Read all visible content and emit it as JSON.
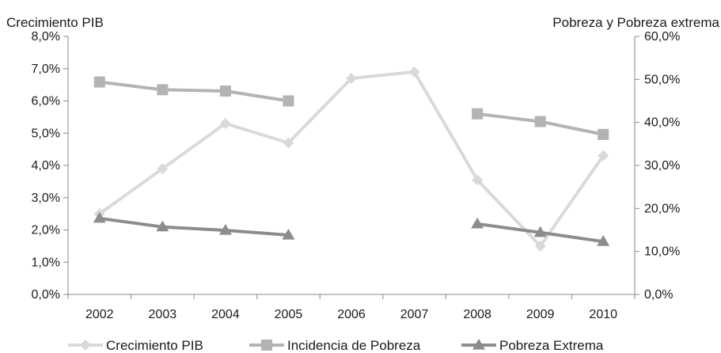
{
  "chart_data": {
    "type": "line",
    "title": "",
    "ylabel_left": "Crecimiento PIB",
    "ylabel_right": "Pobreza y Pobreza extrema",
    "categories": [
      "2002",
      "2003",
      "2004",
      "2005",
      "2006",
      "2007",
      "2008",
      "2009",
      "2010"
    ],
    "y_left": {
      "min": 0,
      "max": 8,
      "ticks": [
        0,
        1,
        2,
        3,
        4,
        5,
        6,
        7,
        8
      ],
      "tick_labels": [
        "0,0%",
        "1,0%",
        "2,0%",
        "3,0%",
        "4,0%",
        "5,0%",
        "6,0%",
        "7,0%",
        "8,0%"
      ]
    },
    "y_right": {
      "min": 0,
      "max": 60,
      "ticks": [
        0,
        10,
        20,
        30,
        40,
        50,
        60
      ],
      "tick_labels": [
        "0,0%",
        "10,0%",
        "20,0%",
        "30,0%",
        "40,0%",
        "50,0%",
        "60,0%"
      ]
    },
    "grid": false,
    "legend_position": "bottom",
    "series": [
      {
        "name": "Crecimiento PIB",
        "axis": "left",
        "marker": "diamond",
        "color": "#d9d9d9",
        "values": [
          2.5,
          3.9,
          5.3,
          4.7,
          6.7,
          6.9,
          3.55,
          1.5,
          4.3
        ]
      },
      {
        "name": "Incidencia de Pobreza",
        "axis": "right",
        "marker": "square",
        "color": "#b3b3b3",
        "values": [
          49.4,
          47.6,
          47.3,
          45.0,
          null,
          null,
          42.0,
          40.2,
          37.2
        ]
      },
      {
        "name": "Pobreza Extrema",
        "axis": "right",
        "marker": "triangle",
        "color": "#8c8c8c",
        "values": [
          17.7,
          15.7,
          14.9,
          13.8,
          null,
          null,
          16.4,
          14.4,
          12.3
        ]
      }
    ]
  }
}
